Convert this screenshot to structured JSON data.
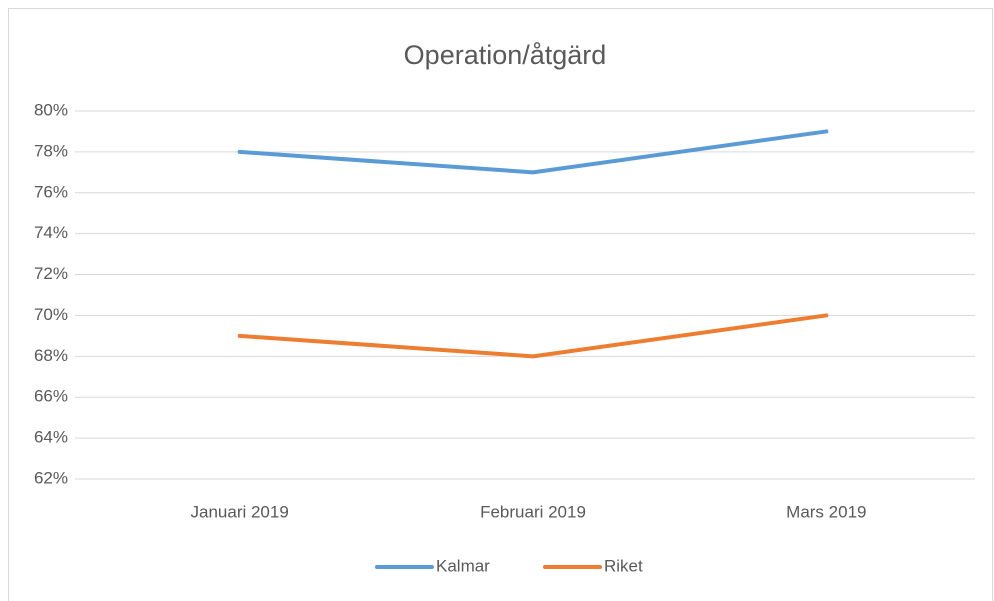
{
  "chart_data": {
    "type": "line",
    "title": "Operation/åtgärd",
    "categories": [
      "Januari 2019",
      "Februari 2019",
      "Mars 2019"
    ],
    "series": [
      {
        "name": "Kalmar",
        "color": "#5b9bd5",
        "values": [
          78,
          77,
          79
        ]
      },
      {
        "name": "Riket",
        "color": "#ed7d31",
        "values": [
          69,
          68,
          70
        ]
      }
    ],
    "ylim": [
      62,
      80
    ],
    "yticks": [
      {
        "value": 62,
        "label": "62%"
      },
      {
        "value": 64,
        "label": "64%"
      },
      {
        "value": 66,
        "label": "66%"
      },
      {
        "value": 68,
        "label": "68%"
      },
      {
        "value": 70,
        "label": "70%"
      },
      {
        "value": 72,
        "label": "72%"
      },
      {
        "value": 74,
        "label": "74%"
      },
      {
        "value": 76,
        "label": "76%"
      },
      {
        "value": 78,
        "label": "78%"
      },
      {
        "value": 80,
        "label": "80%"
      }
    ],
    "grid": true,
    "legend": "bottom"
  }
}
